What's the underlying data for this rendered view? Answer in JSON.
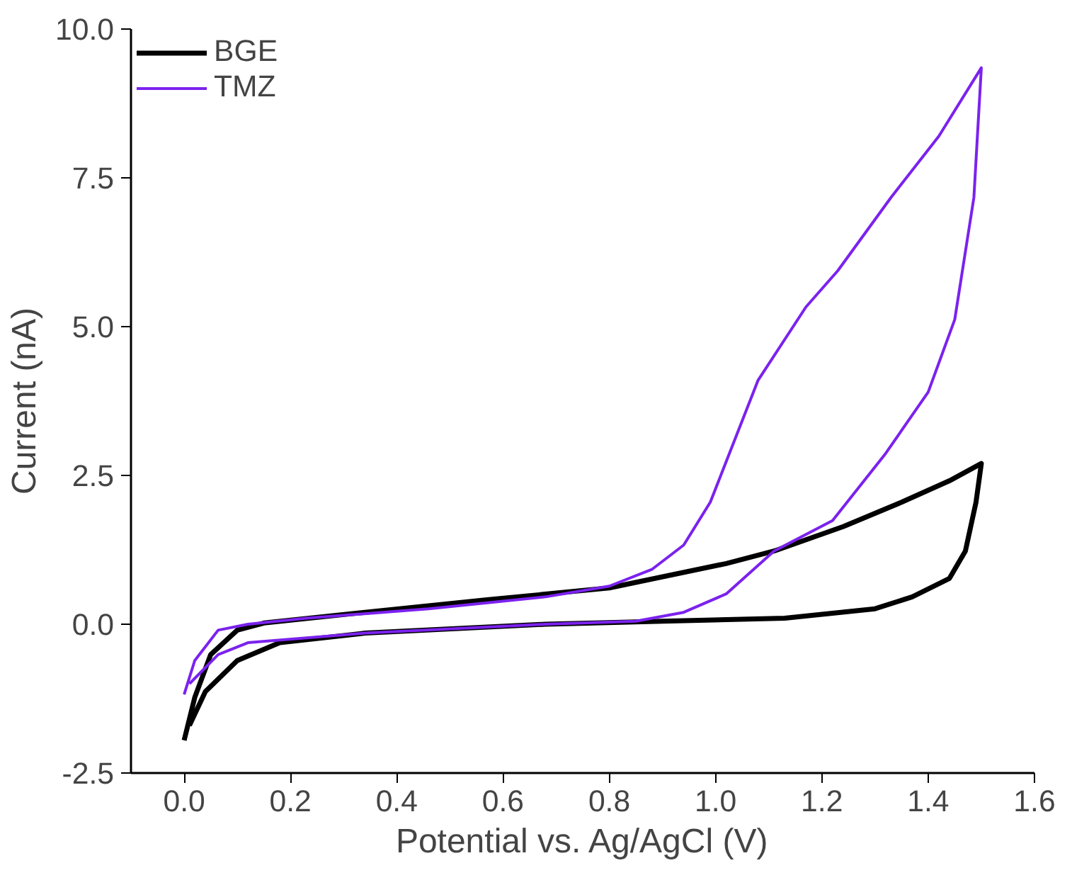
{
  "chart_data": {
    "type": "line",
    "xlabel": "Potential vs. Ag/AgCl (V)",
    "ylabel": "Current (nA)",
    "xlim": [
      -0.1,
      1.6
    ],
    "ylim": [
      -2.5,
      10.0
    ],
    "xticks": [
      {
        "value": 0,
        "label": "0.0"
      },
      0.2,
      0.4,
      0.6,
      0.8,
      {
        "value": 1,
        "label": "1.0"
      },
      1.2,
      1.4,
      1.6
    ],
    "yticks": [
      -2.5,
      {
        "value": 0,
        "label": "0.0"
      },
      2.5,
      {
        "value": 5,
        "label": "5.0"
      },
      7.5,
      {
        "value": 10,
        "label": "10.0"
      }
    ],
    "grid": false,
    "legend": "top left",
    "line_style": "solid",
    "marker": "none",
    "series": [
      {
        "name": "BGE",
        "color": "#000000",
        "x": [
          0,
          0.02,
          0.05,
          0.1,
          0.15,
          0.34,
          0.57,
          0.8,
          1.02,
          1.11,
          1.24,
          1.35,
          1.44,
          1.5,
          1.49,
          1.47,
          1.44,
          1.37,
          1.3,
          1.13,
          0.9,
          0.68,
          0.34,
          0.18,
          0.1,
          0.04,
          0.01
        ],
        "values": [
          -1.95,
          -1.23,
          -0.51,
          -0.1,
          0.02,
          0.2,
          0.41,
          0.61,
          1.02,
          1.23,
          1.64,
          2.05,
          2.41,
          2.7,
          2.05,
          1.23,
          0.77,
          0.46,
          0.26,
          0.1,
          0.05,
          0,
          -0.15,
          -0.31,
          -0.61,
          -1.13,
          -1.7
        ]
      },
      {
        "name": "TMZ",
        "color": "#7b22ee",
        "x": [
          0,
          0.02,
          0.064,
          0.12,
          0.23,
          0.46,
          0.68,
          0.8,
          0.88,
          0.94,
          0.99,
          1.08,
          1.17,
          1.23,
          1.33,
          1.42,
          1.5,
          1.486,
          1.45,
          1.4,
          1.32,
          1.22,
          1.11,
          1.02,
          0.94,
          0.85,
          0.68,
          0.34,
          0.12,
          0.064,
          0.01
        ],
        "values": [
          -1.18,
          -0.61,
          -0.1,
          0,
          0.1,
          0.26,
          0.46,
          0.64,
          0.92,
          1.33,
          2.05,
          4.1,
          5.33,
          5.94,
          7.17,
          8.2,
          9.35,
          7.17,
          5.12,
          3.9,
          2.87,
          1.74,
          1.23,
          0.51,
          0.2,
          0.05,
          0,
          -0.15,
          -0.31,
          -0.51,
          -1.0
        ]
      }
    ]
  }
}
